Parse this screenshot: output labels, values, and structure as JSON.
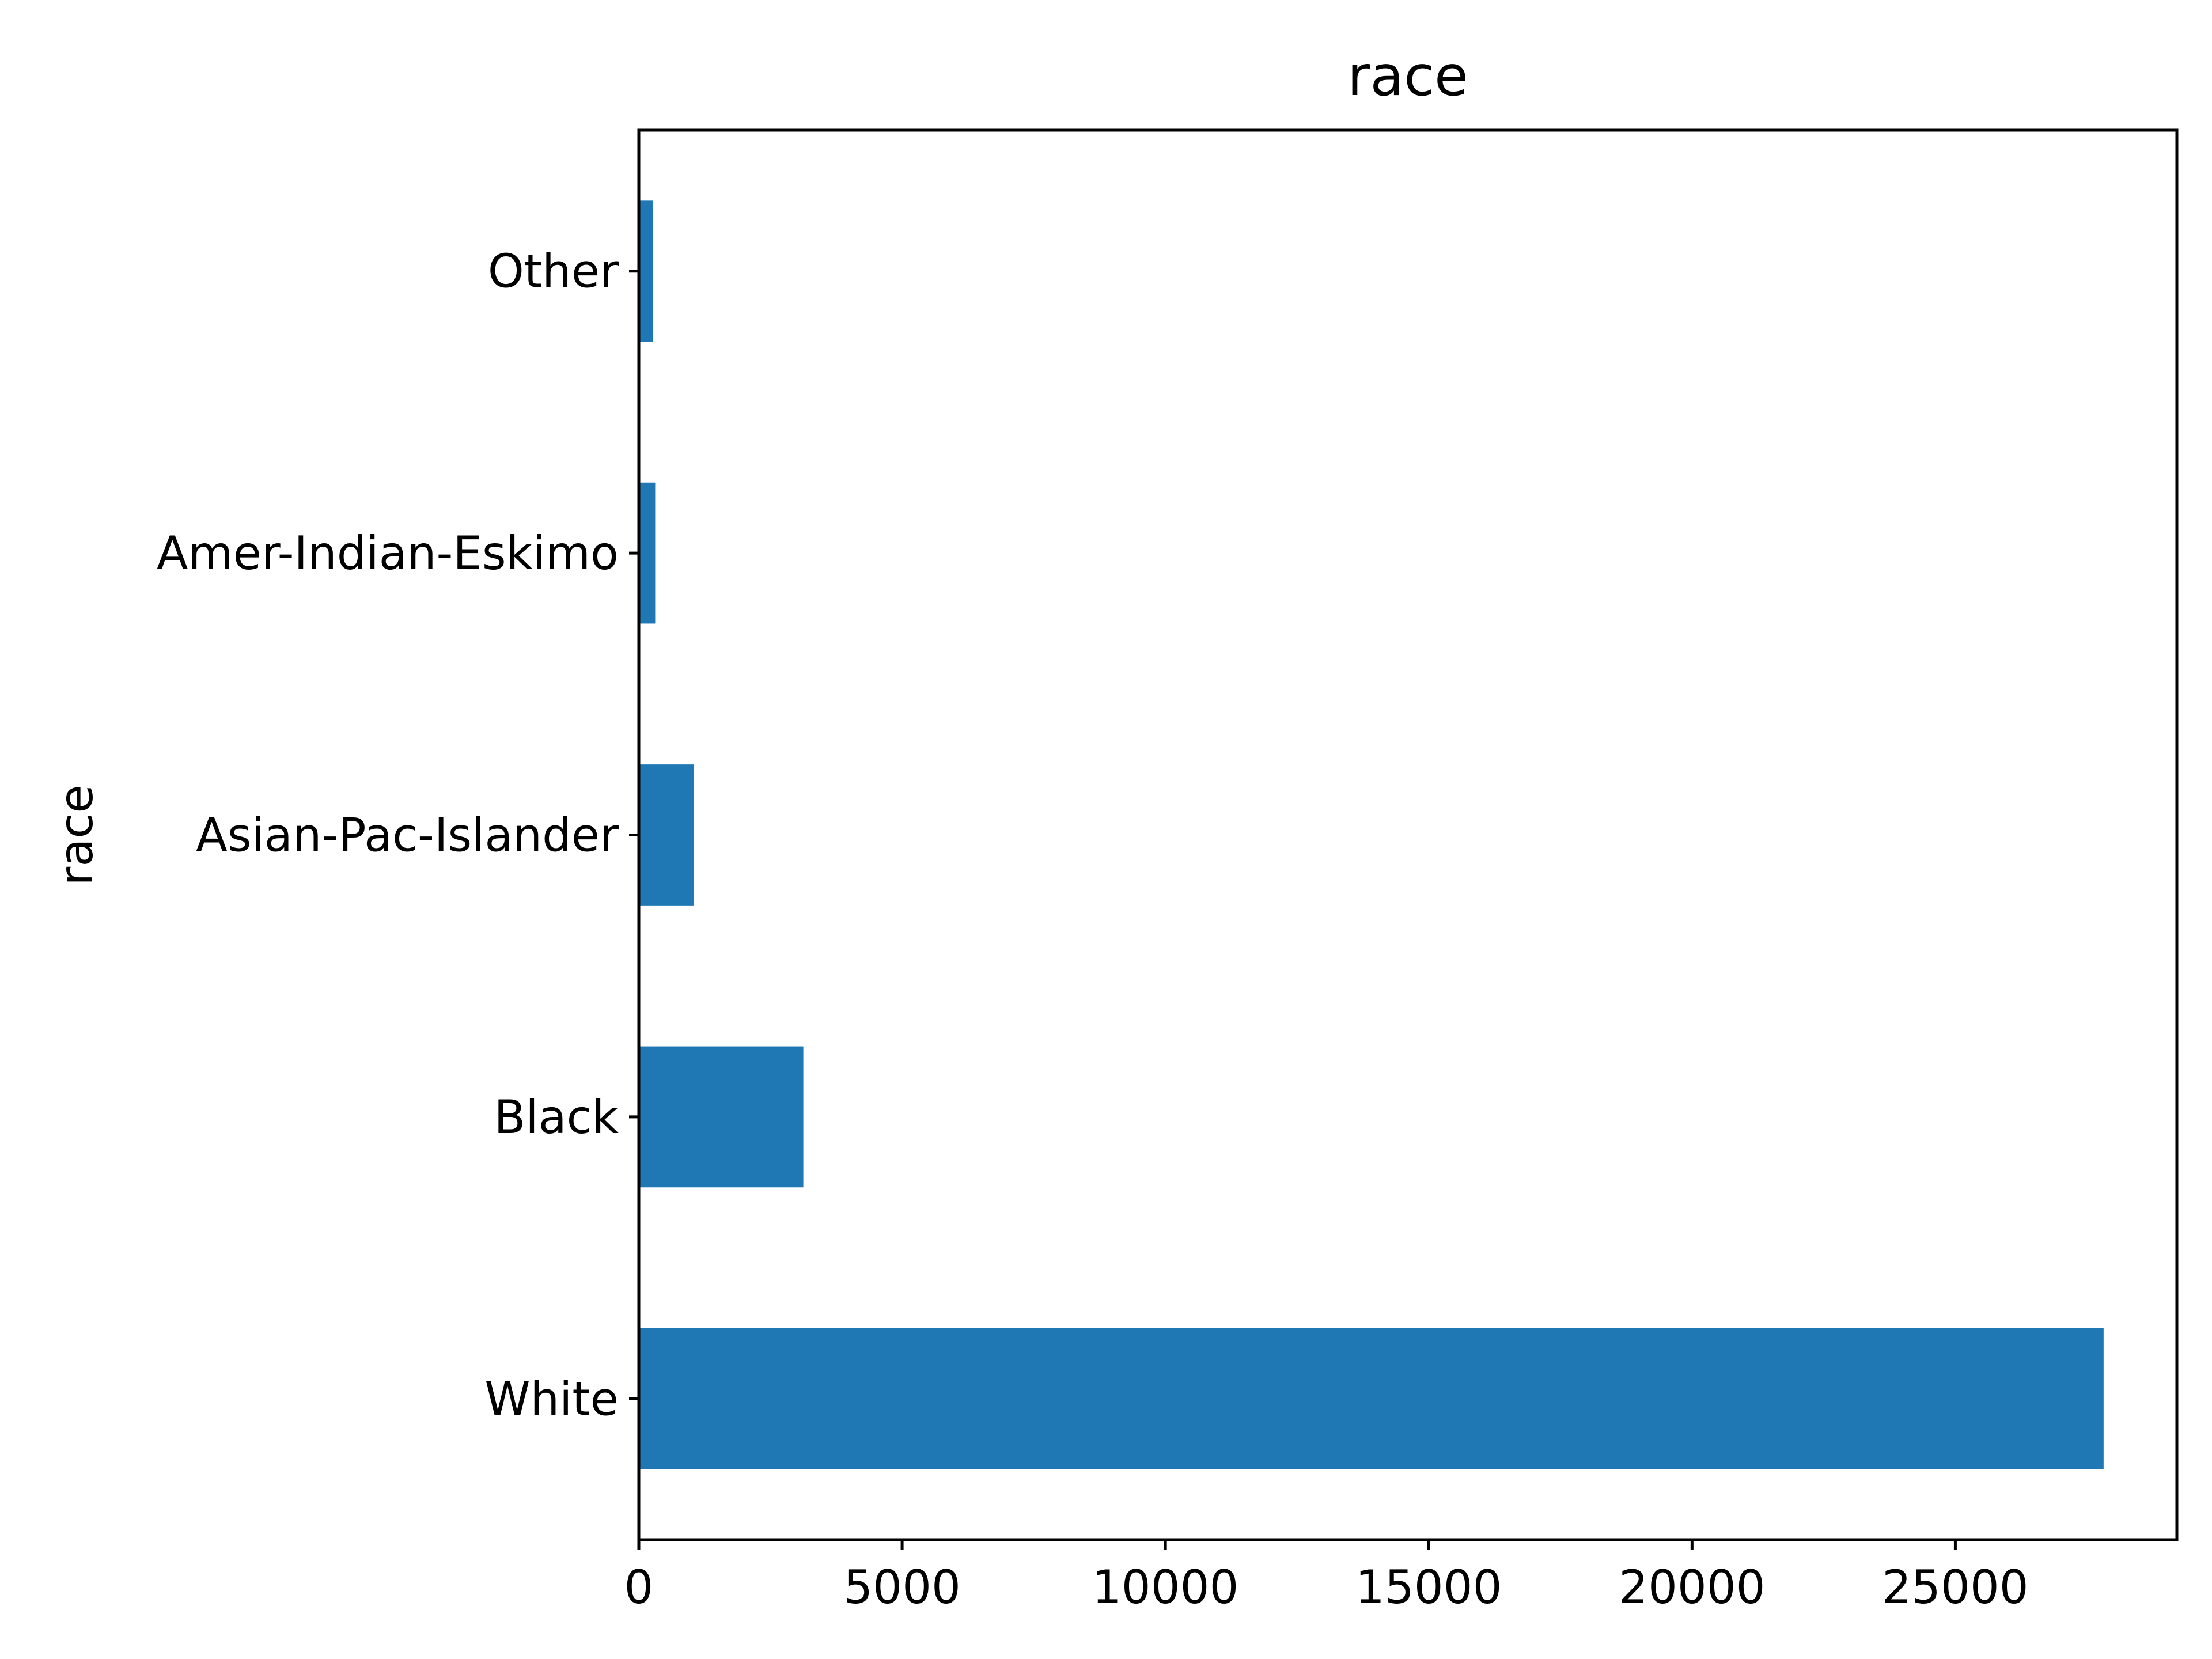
{
  "chart_data": {
    "type": "bar",
    "orientation": "horizontal",
    "title": "race",
    "ylabel": "race",
    "xlabel": "",
    "categories": [
      "White",
      "Black",
      "Asian-Pac-Islander",
      "Amer-Indian-Eskimo",
      "Other"
    ],
    "values": [
      27816,
      3124,
      1039,
      311,
      271
    ],
    "xlim": [
      0,
      29207
    ],
    "xticks": [
      0,
      5000,
      10000,
      15000,
      20000,
      25000
    ],
    "xtick_labels": [
      "0",
      "5000",
      "10000",
      "15000",
      "20000",
      "25000"
    ],
    "grid": false,
    "legend": "none",
    "bar_color": "#1f77b4"
  }
}
